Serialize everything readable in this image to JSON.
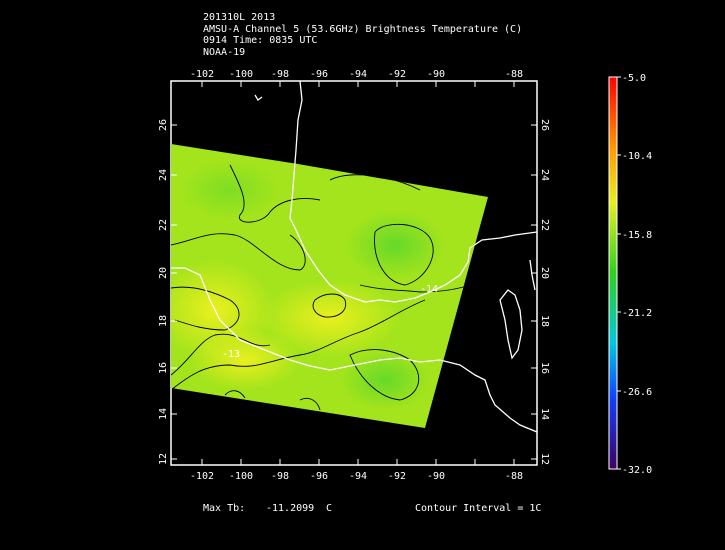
{
  "header": {
    "line1": "201310L 2013",
    "line2": "AMSU-A Channel 5 (53.6GHz) Brightness Temperature (C)",
    "line3": "0914 Time: 0835 UTC",
    "line4": "NOAA-19"
  },
  "map": {
    "lon_ticks": [
      "-102",
      "-100",
      "-98",
      "-96",
      "-94",
      "-92",
      "-90",
      "-88"
    ],
    "lat_ticks": [
      "12",
      "14",
      "16",
      "18",
      "20",
      "22",
      "24",
      "26"
    ],
    "contour_labels": [
      "-14",
      "-13"
    ],
    "colors": {
      "field_main": "#9be61e",
      "field_warm": "#d6ee1c",
      "field_cool": "#6fdc28",
      "coastline": "#ffffff",
      "contour": "#000000"
    }
  },
  "colorbar": {
    "labels": [
      "-5.0",
      "-10.4",
      "-15.8",
      "-21.2",
      "-26.6",
      "-32.0"
    ],
    "min": -32.0,
    "max": -5.0
  },
  "footer": {
    "max_label": "Max Tb:",
    "max_value": "-11.2099",
    "max_unit": "C",
    "contour_interval": "Contour Interval = 1C"
  }
}
